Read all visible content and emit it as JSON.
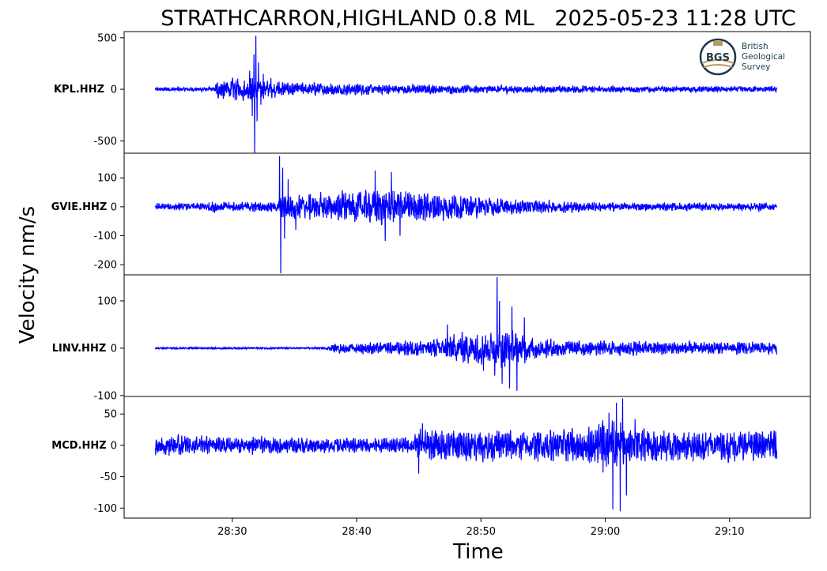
{
  "chart_data": {
    "type": "line",
    "title": "STRATHCARRON,HIGHLAND 0.8 ML   2025-05-23 11:28 UTC",
    "xlabel": "Time",
    "ylabel": "Velocity nm/s",
    "x_start_seconds": 23.8,
    "x_end_seconds": 73.8,
    "xlim": [
      21.3,
      76.5
    ],
    "x_ticks": [
      30,
      40,
      50,
      60,
      70
    ],
    "x_tick_labels": [
      "28:30",
      "28:40",
      "28:50",
      "29:00",
      "29:10"
    ],
    "line_color": "#0000ff",
    "logo": {
      "text_lines": [
        "British",
        "Geological",
        "Survey"
      ],
      "badge": "BGS"
    },
    "series": [
      {
        "name": "KPL.HHZ",
        "ylim": [
          -620,
          560
        ],
        "yticks": [
          500,
          0,
          -500
        ],
        "ytick_labels": [
          "500",
          "0",
          "-500"
        ],
        "noise_amp": 35,
        "envelope": [
          [
            23.8,
            0.4
          ],
          [
            28.5,
            0.5
          ],
          [
            28.9,
            2.2
          ],
          [
            31.5,
            2.6
          ],
          [
            32.2,
            2.0
          ],
          [
            36,
            1.4
          ],
          [
            45,
            0.9
          ],
          [
            60,
            0.7
          ],
          [
            73.8,
            0.6
          ]
        ],
        "spikes": [
          [
            31.4,
            180
          ],
          [
            31.6,
            -260
          ],
          [
            31.75,
            340
          ],
          [
            31.8,
            -620
          ],
          [
            31.9,
            520
          ],
          [
            32.0,
            -310
          ],
          [
            32.1,
            260
          ],
          [
            32.3,
            -150
          ],
          [
            32.5,
            150
          ],
          [
            33.1,
            110
          ]
        ]
      },
      {
        "name": "GVIE.HHZ",
        "ylim": [
          -235,
          185
        ],
        "yticks": [
          100,
          0,
          -100,
          -200
        ],
        "ytick_labels": [
          "100",
          "0",
          "-100",
          "-200"
        ],
        "noise_amp": 9,
        "envelope": [
          [
            23.8,
            1.0
          ],
          [
            27.5,
            1.1
          ],
          [
            28.2,
            1.8
          ],
          [
            31,
            1.4
          ],
          [
            33.7,
            1.5
          ],
          [
            34.0,
            3.6
          ],
          [
            38,
            4.2
          ],
          [
            42,
            5.0
          ],
          [
            48,
            3.8
          ],
          [
            52,
            2.2
          ],
          [
            60,
            1.3
          ],
          [
            73.8,
            1.1
          ]
        ],
        "spikes": [
          [
            33.8,
            175
          ],
          [
            33.9,
            -230
          ],
          [
            34.05,
            135
          ],
          [
            34.2,
            -110
          ],
          [
            34.5,
            95
          ],
          [
            35.1,
            -80
          ],
          [
            41.5,
            125
          ],
          [
            42.3,
            -118
          ],
          [
            42.8,
            120
          ],
          [
            43.5,
            -100
          ]
        ]
      },
      {
        "name": "LINV.HHZ",
        "ylim": [
          -102,
          155
        ],
        "yticks": [
          100,
          0,
          -100
        ],
        "ytick_labels": [
          "100",
          "0",
          "-100"
        ],
        "noise_amp": 5,
        "envelope": [
          [
            23.8,
            0.3
          ],
          [
            37.5,
            0.3
          ],
          [
            38.1,
            1.5
          ],
          [
            42,
            2.0
          ],
          [
            46,
            2.8
          ],
          [
            48,
            4.5
          ],
          [
            50,
            5.2
          ],
          [
            52,
            6.0
          ],
          [
            55,
            3.2
          ],
          [
            60,
            2.3
          ],
          [
            73.8,
            1.9
          ]
        ],
        "spikes": [
          [
            47.3,
            50
          ],
          [
            50.2,
            -48
          ],
          [
            51.1,
            -58
          ],
          [
            51.3,
            150
          ],
          [
            51.5,
            100
          ],
          [
            51.7,
            -75
          ],
          [
            52.3,
            -85
          ],
          [
            52.5,
            88
          ],
          [
            52.9,
            -90
          ],
          [
            53.5,
            65
          ]
        ]
      },
      {
        "name": "MCD.HHZ",
        "ylim": [
          -116,
          78
        ],
        "yticks": [
          50,
          0,
          -50,
          -100
        ],
        "ytick_labels": [
          "50",
          "0",
          "-50",
          "-100"
        ],
        "noise_amp": 8,
        "envelope": [
          [
            23.8,
            1.5
          ],
          [
            35,
            1.2
          ],
          [
            38,
            1.1
          ],
          [
            44.5,
            1.2
          ],
          [
            45,
            2.4
          ],
          [
            55,
            2.3
          ],
          [
            59,
            3.0
          ],
          [
            60.5,
            4.5
          ],
          [
            62,
            3.0
          ],
          [
            66,
            2.4
          ],
          [
            73.8,
            2.2
          ]
        ],
        "spikes": [
          [
            45.0,
            -45
          ],
          [
            45.3,
            35
          ],
          [
            59.8,
            40
          ],
          [
            60.3,
            52
          ],
          [
            60.6,
            -102
          ],
          [
            60.9,
            68
          ],
          [
            61.2,
            -105
          ],
          [
            61.4,
            75
          ],
          [
            61.7,
            -80
          ],
          [
            62.4,
            42
          ]
        ]
      }
    ]
  }
}
